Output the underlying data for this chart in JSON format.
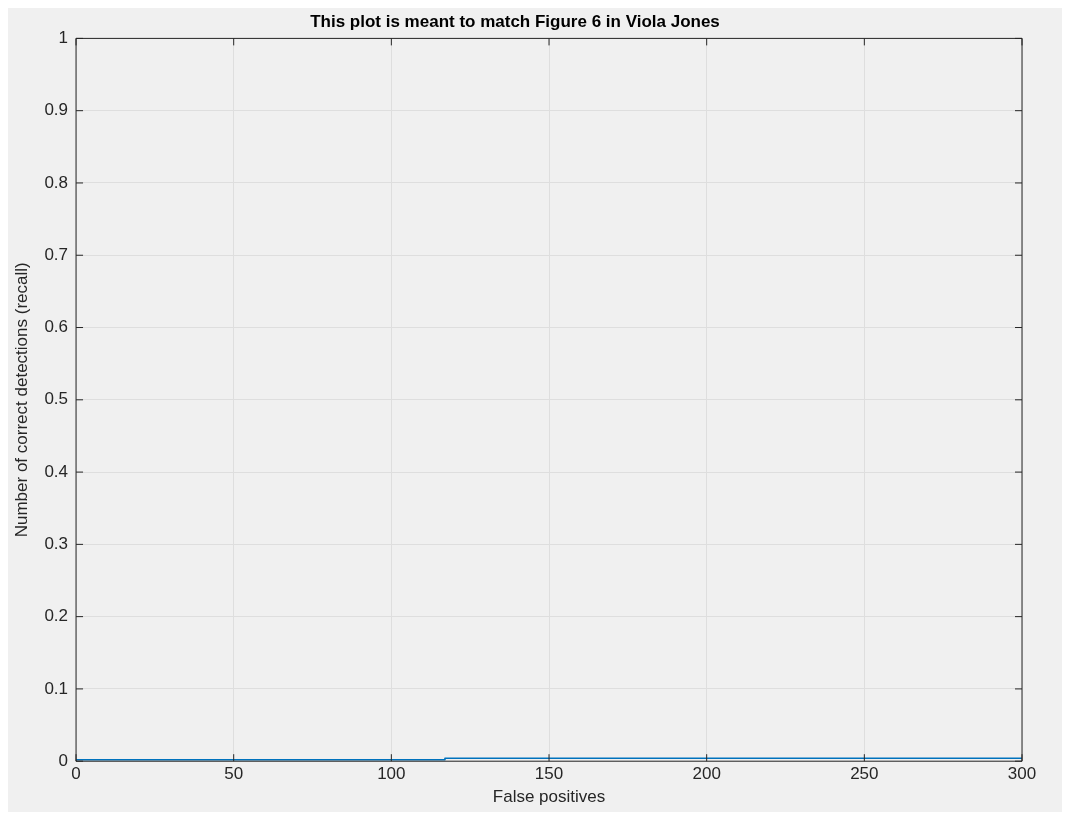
{
  "chart_data": {
    "type": "step",
    "title": "This plot is meant to match Figure 6 in Viola Jones",
    "xlabel": "False positives",
    "ylabel": "Number of correct detections (recall)",
    "x": [
      0,
      117,
      247,
      300
    ],
    "series": [
      {
        "color": "#0072bd",
        "values": [
          0,
          0.002,
          0.004,
          0.004
        ]
      }
    ],
    "xlim": [
      0,
      300
    ],
    "xticks": [
      0,
      50,
      100,
      150,
      200,
      250,
      300
    ],
    "ylim": [
      0,
      1
    ],
    "yticks": [
      0,
      0.1,
      0.2,
      0.3,
      0.4,
      0.5,
      0.6,
      0.7,
      0.8,
      0.9,
      1
    ],
    "grid": true,
    "legend": false,
    "marker": "none",
    "line_style": "solid"
  }
}
